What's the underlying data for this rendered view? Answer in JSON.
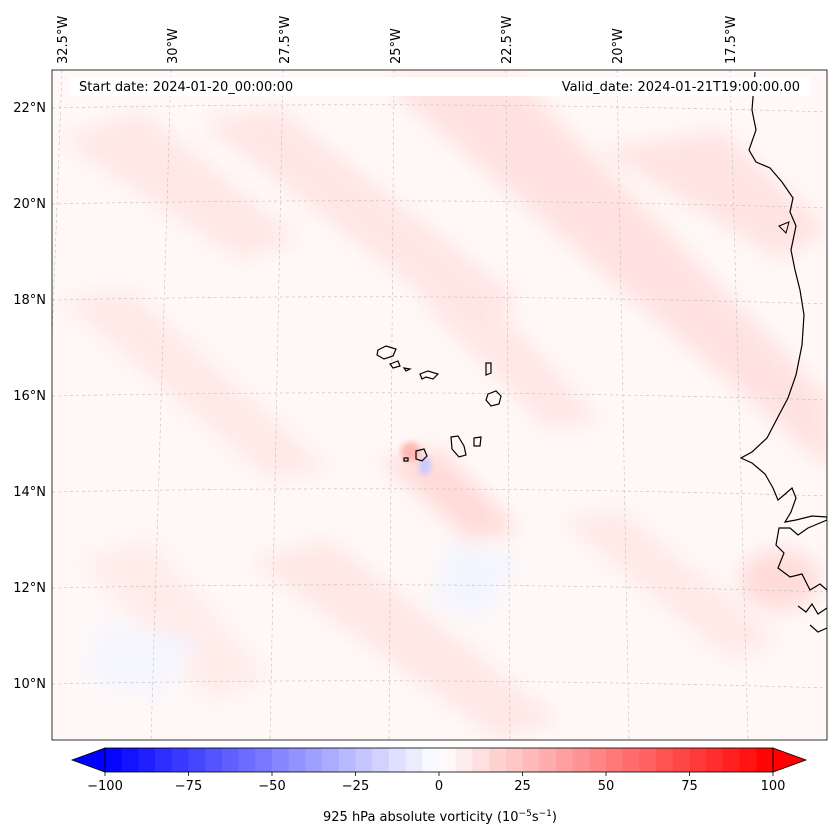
{
  "header": {
    "start_date": "Start date: 2024-01-20_00:00:00",
    "valid_date": "Valid_date: 2024-01-21T19:00:00.00"
  },
  "axes": {
    "longitude_labels": [
      "32.5°W",
      "30°W",
      "27.5°W",
      "25°W",
      "22.5°W",
      "20°W",
      "17.5°W"
    ],
    "latitude_labels": [
      "22°N",
      "20°N",
      "18°N",
      "16°N",
      "14°N",
      "12°N",
      "10°N"
    ]
  },
  "colorbar": {
    "ticks": [
      "−100",
      "−75",
      "−50",
      "−25",
      "0",
      "25",
      "50",
      "75",
      "100"
    ],
    "label_main": "925 hPa absolute vorticity (10",
    "label_exp1": "−5",
    "label_mid": "s",
    "label_exp2": "−1",
    "label_end": ")",
    "range": [
      -100,
      100
    ],
    "colors": {
      "min": "#0000ff",
      "mid": "#ffffff",
      "max": "#ff0000"
    }
  }
}
